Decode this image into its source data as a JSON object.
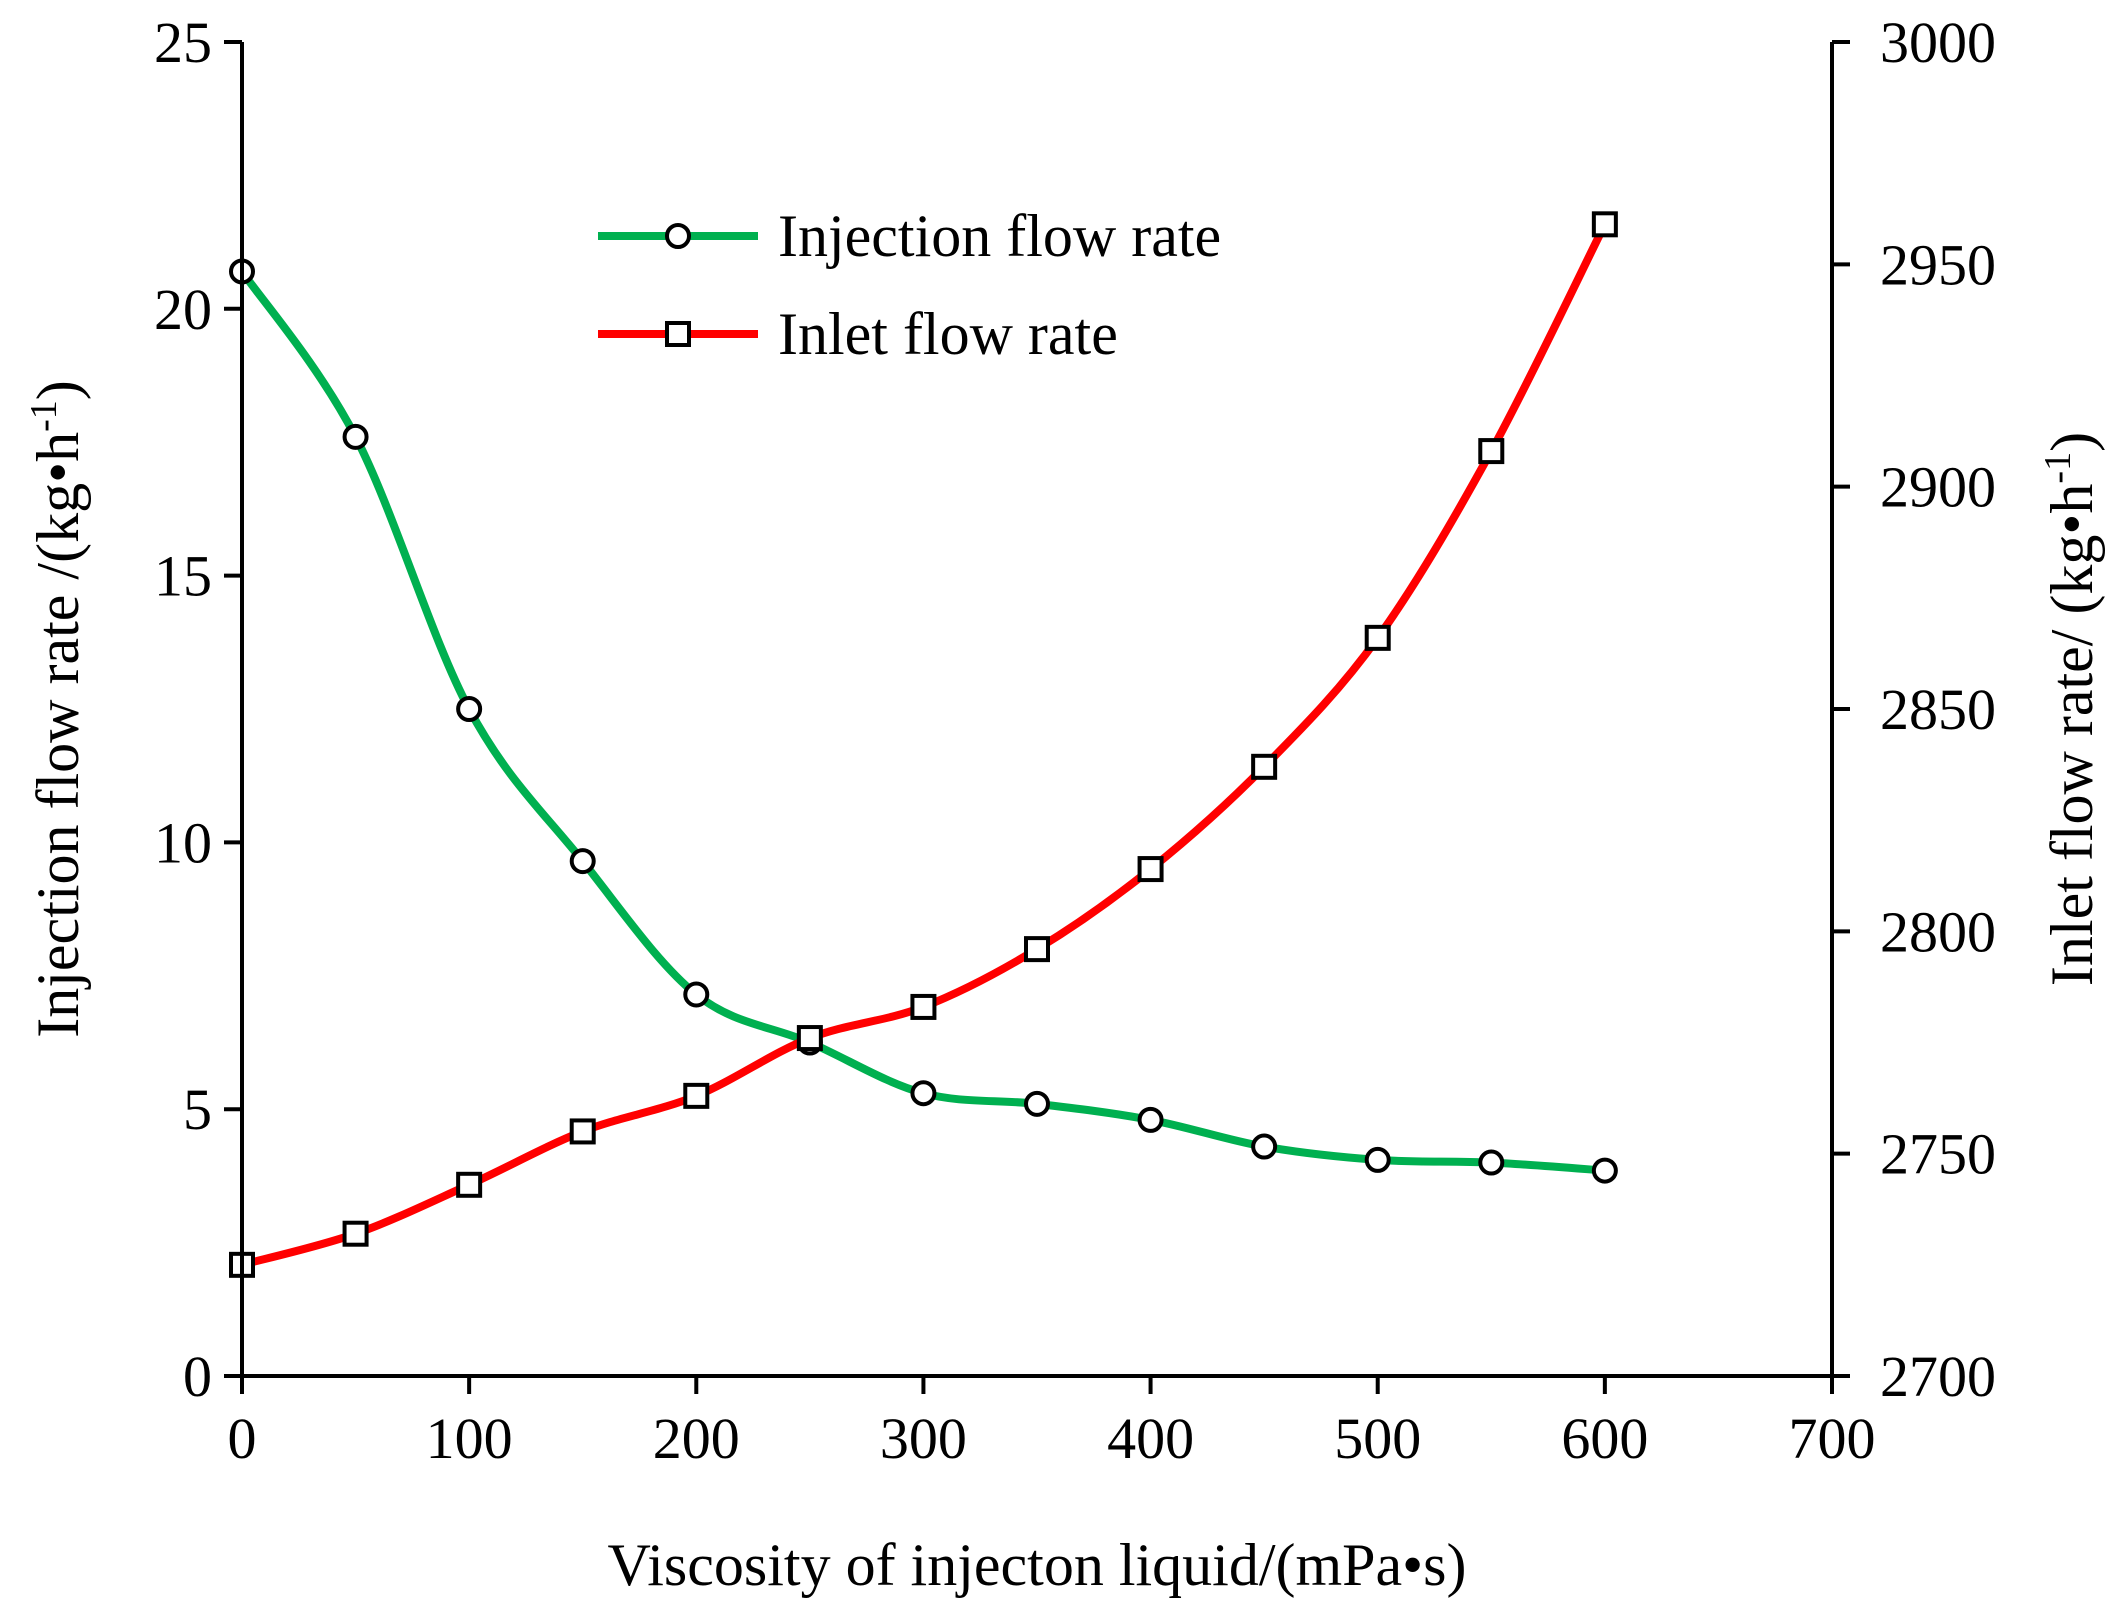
{
  "chart_data": {
    "type": "line",
    "xlabel": "Viscosity of injecton liquid/(mPa•s)",
    "ylabel_left": {
      "main": "Injection flow rate /(kg•h",
      "sup": "-1",
      "end": ")"
    },
    "ylabel_right": {
      "main": "Inlet flow rate/ (kg•h",
      "sup": "-1",
      "end": ")"
    },
    "xlim": [
      0,
      700
    ],
    "ylim_left": [
      0,
      25
    ],
    "ylim_right": [
      2700,
      3000
    ],
    "x_ticks": [
      "0",
      "100",
      "200",
      "300",
      "400",
      "500",
      "600",
      "700"
    ],
    "y_left_ticks": [
      "0",
      "5",
      "10",
      "15",
      "20",
      "25"
    ],
    "y_right_ticks": [
      "2700",
      "2750",
      "2800",
      "2850",
      "2900",
      "2950",
      "3000"
    ],
    "grid": false,
    "legend_position": "top-center",
    "x": [
      0,
      50,
      100,
      150,
      200,
      250,
      300,
      350,
      400,
      450,
      500,
      550,
      600
    ],
    "series": [
      {
        "name": "Injection flow rate",
        "axis": "left",
        "color": "#00b050",
        "marker": "circle",
        "values": [
          20.7,
          17.6,
          12.5,
          9.65,
          7.15,
          6.25,
          5.3,
          5.1,
          4.8,
          4.3,
          4.05,
          4.0,
          3.85
        ]
      },
      {
        "name": "Inlet flow rate",
        "axis": "right",
        "color": "#ff0000",
        "marker": "square",
        "values": [
          2725,
          2732,
          2743,
          2755,
          2763,
          2776,
          2783,
          2796,
          2814,
          2837,
          2866,
          2908,
          2959
        ]
      }
    ]
  }
}
